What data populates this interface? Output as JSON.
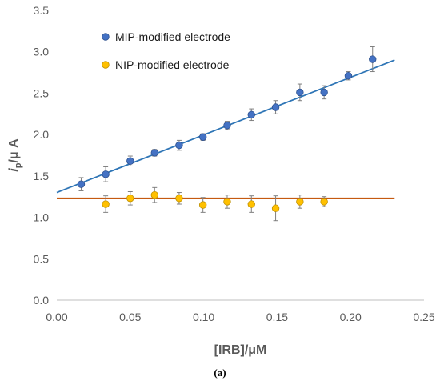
{
  "chart_data": {
    "type": "scatter",
    "xlabel": "[IRB]/μM",
    "ylabel_main": "i",
    "ylabel_sub": "p",
    "ylabel_rest": "/μ A",
    "xlim": [
      0,
      0.25
    ],
    "ylim": [
      0,
      3.5
    ],
    "xticks": [
      "0.00",
      "0.05",
      "0.10",
      "0.15",
      "0.20",
      "0.25"
    ],
    "yticks": [
      "0.0",
      "0.5",
      "1.0",
      "1.5",
      "2.0",
      "2.5",
      "3.0",
      "3.5"
    ],
    "grid": false,
    "legend_position": "top-left",
    "caption": "(a)",
    "series": [
      {
        "name": "MIP-modified electrode",
        "color": "#4472C4",
        "trendline_color": "#2E75B6",
        "trendline": {
          "x_start": 0,
          "x_end": 0.23,
          "y_start": 1.3,
          "y_end": 2.9
        },
        "points": [
          {
            "x": 0.0166,
            "y": 1.4,
            "err": 0.08
          },
          {
            "x": 0.0333,
            "y": 1.52,
            "err": 0.09
          },
          {
            "x": 0.05,
            "y": 1.68,
            "err": 0.06
          },
          {
            "x": 0.0666,
            "y": 1.78,
            "err": 0.04
          },
          {
            "x": 0.0833,
            "y": 1.87,
            "err": 0.06
          },
          {
            "x": 0.0995,
            "y": 1.97,
            "err": 0.04
          },
          {
            "x": 0.116,
            "y": 2.11,
            "err": 0.05
          },
          {
            "x": 0.1325,
            "y": 2.24,
            "err": 0.07
          },
          {
            "x": 0.149,
            "y": 2.33,
            "err": 0.08
          },
          {
            "x": 0.1655,
            "y": 2.51,
            "err": 0.1
          },
          {
            "x": 0.182,
            "y": 2.51,
            "err": 0.08
          },
          {
            "x": 0.1985,
            "y": 2.71,
            "err": 0.05
          },
          {
            "x": 0.215,
            "y": 2.91,
            "err": 0.15
          }
        ]
      },
      {
        "name": "NIP-modified electrode",
        "color": "#FFC000",
        "trendline_color": "#C55A11",
        "trendline": {
          "x_start": 0,
          "x_end": 0.23,
          "y_start": 1.23,
          "y_end": 1.23
        },
        "points": [
          {
            "x": 0.0333,
            "y": 1.16,
            "err": 0.1
          },
          {
            "x": 0.05,
            "y": 1.23,
            "err": 0.08
          },
          {
            "x": 0.0666,
            "y": 1.27,
            "err": 0.09
          },
          {
            "x": 0.0833,
            "y": 1.23,
            "err": 0.07
          },
          {
            "x": 0.0995,
            "y": 1.15,
            "err": 0.09
          },
          {
            "x": 0.116,
            "y": 1.19,
            "err": 0.08
          },
          {
            "x": 0.1325,
            "y": 1.16,
            "err": 0.1
          },
          {
            "x": 0.149,
            "y": 1.11,
            "err": 0.15
          },
          {
            "x": 0.1655,
            "y": 1.19,
            "err": 0.08
          },
          {
            "x": 0.182,
            "y": 1.19,
            "err": 0.06
          }
        ]
      }
    ]
  }
}
